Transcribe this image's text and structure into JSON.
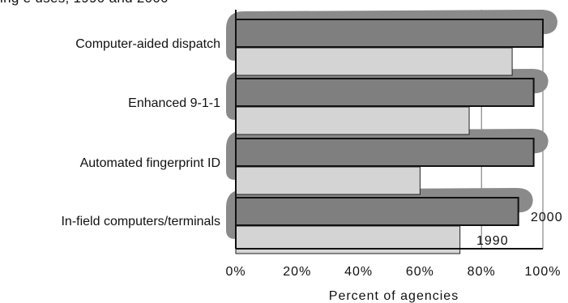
{
  "partial_title": "ing e uses, 1990 and 2000",
  "chart_data": {
    "type": "bar",
    "orientation": "horizontal",
    "categories": [
      "Computer-aided dispatch",
      "Enhanced 9-1-1",
      "Automated fingerprint ID",
      "In-field computers/terminals"
    ],
    "series": [
      {
        "name": "2000",
        "values": [
          100,
          97,
          97,
          92
        ],
        "color": "#7f7f7f"
      },
      {
        "name": "1990",
        "values": [
          90,
          76,
          60,
          73
        ],
        "color": "#d4d4d4"
      }
    ],
    "xlabel": "Percent of agencies",
    "xlim": [
      0,
      100
    ],
    "x_ticks": [
      "0%",
      "20%",
      "40%",
      "60%",
      "80%",
      "100%"
    ],
    "gridlines": [
      80,
      100
    ],
    "legend": "series labels beside bottom bars, right side"
  }
}
